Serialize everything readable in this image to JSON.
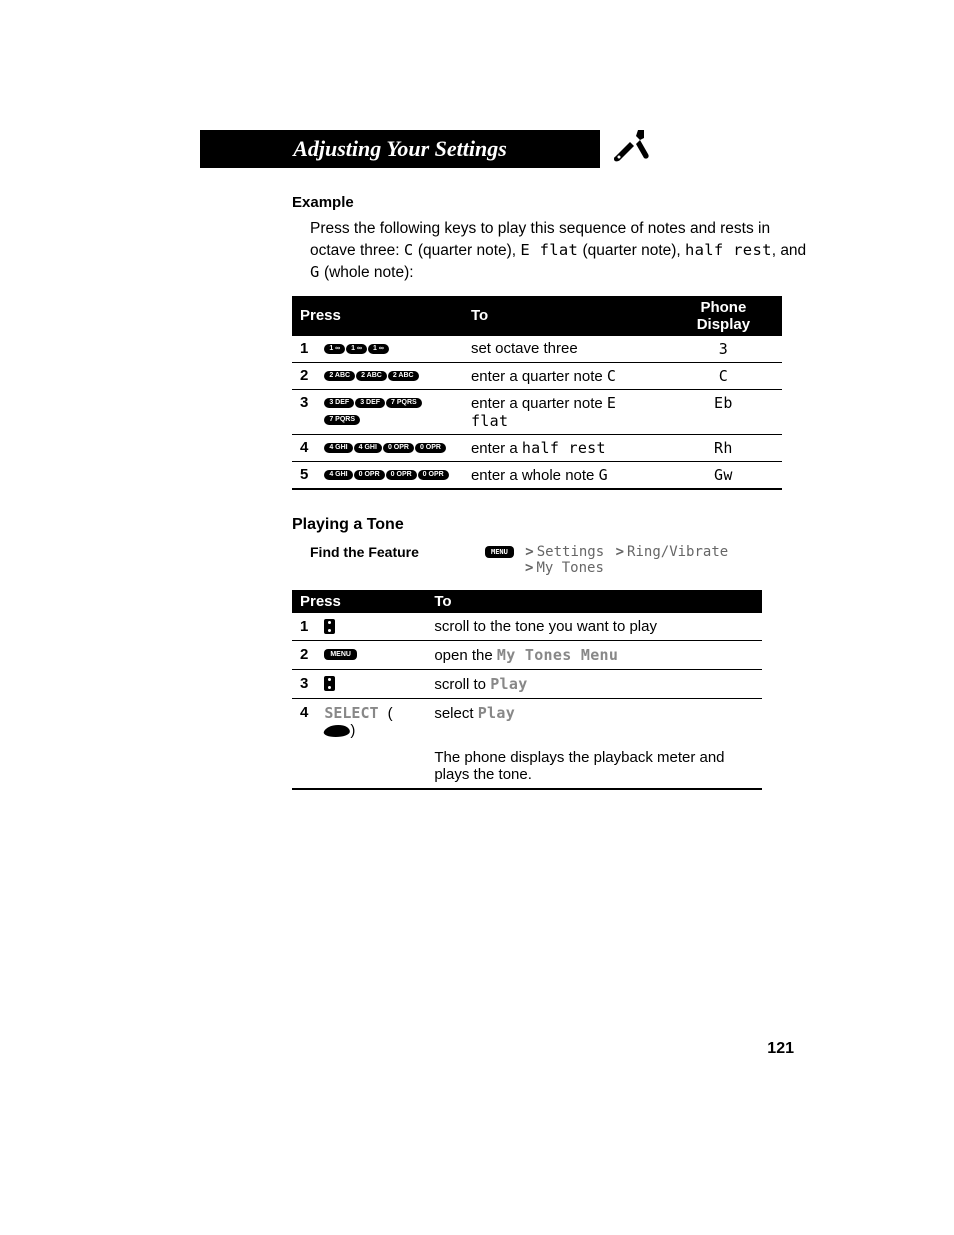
{
  "header": {
    "title": "Adjusting Your Settings"
  },
  "example": {
    "heading": "Example",
    "para_pre": "Press the following keys to play this sequence of notes and rests in octave three: ",
    "seq1": "C",
    "seq1_desc": " (quarter note), ",
    "seq2": "E flat",
    "seq2_desc": " (quarter note), ",
    "seq3": "half rest",
    "seq3_desc": ", and ",
    "seq4": "G",
    "seq4_desc": " (whole note):"
  },
  "table1": {
    "headers": {
      "press": "Press",
      "to": "To",
      "display": "Phone Display"
    },
    "rows": [
      {
        "n": "1",
        "keys": [
          "1 ∞",
          "1 ∞",
          "1 ∞"
        ],
        "to": "set octave three",
        "disp": "3"
      },
      {
        "n": "2",
        "keys": [
          "2 ABC",
          "2 ABC",
          "2 ABC"
        ],
        "to_pre": "enter a quarter note ",
        "to_mono": "C",
        "disp": "C"
      },
      {
        "n": "3",
        "keys": [
          "3 DEF",
          "3 DEF",
          "7 PQRS",
          "7 PQRS"
        ],
        "to_pre": "enter a quarter note ",
        "to_mono": "E flat",
        "disp": "Eb"
      },
      {
        "n": "4",
        "keys": [
          "4 GHI",
          "4 GHI",
          "0 OPR",
          "0 OPR"
        ],
        "to_pre": "enter a ",
        "to_mono": "half rest",
        "disp": "Rh"
      },
      {
        "n": "5",
        "keys": [
          "4 GHI",
          "0 OPR",
          "0 OPR",
          "0 OPR"
        ],
        "to_pre": "enter a whole note ",
        "to_mono": "G",
        "disp": "Gw"
      }
    ]
  },
  "playing": {
    "heading": "Playing a Tone",
    "find_label": "Find the Feature",
    "menu_label": "MENU",
    "path1a": "Settings",
    "path1b": "Ring/Vibrate",
    "path2": "My Tones"
  },
  "table2": {
    "headers": {
      "press": "Press",
      "to": "To"
    },
    "rows": [
      {
        "n": "1",
        "glyph": "nav",
        "to": "scroll to the tone you want to play"
      },
      {
        "n": "2",
        "glyph": "menu",
        "to_pre": "open the ",
        "to_mono": "My Tones Menu"
      },
      {
        "n": "3",
        "glyph": "nav",
        "to_pre": "scroll to ",
        "to_mono": "Play"
      },
      {
        "n": "4",
        "select_label": "SELECT",
        "to_pre": "select ",
        "to_mono": "Play",
        "extra": "The phone displays the playback meter and plays the tone."
      }
    ]
  },
  "page_number": "121"
}
